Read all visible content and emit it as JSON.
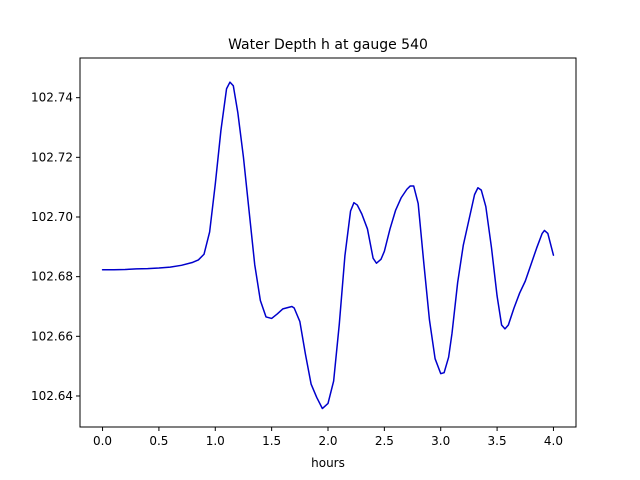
{
  "chart_data": {
    "type": "line",
    "title": "Water Depth h at gauge 540",
    "xlabel": "hours",
    "ylabel": "",
    "xlim": [
      -0.2,
      4.2
    ],
    "ylim": [
      102.6296,
      102.7533
    ],
    "grid": false,
    "x_ticks": [
      0.0,
      0.5,
      1.0,
      1.5,
      2.0,
      2.5,
      3.0,
      3.5,
      4.0
    ],
    "x_tick_labels": [
      "0.0",
      "0.5",
      "1.0",
      "1.5",
      "2.0",
      "2.5",
      "3.0",
      "3.5",
      "4.0"
    ],
    "y_ticks": [
      102.64,
      102.66,
      102.68,
      102.7,
      102.72,
      102.74
    ],
    "y_tick_labels": [
      "102.64",
      "102.66",
      "102.68",
      "102.70",
      "102.72",
      "102.74"
    ],
    "series": [
      {
        "color": "#0000cc",
        "x": [
          0.0,
          0.1,
          0.2,
          0.3,
          0.4,
          0.5,
          0.6,
          0.7,
          0.8,
          0.85,
          0.9,
          0.95,
          1.0,
          1.05,
          1.1,
          1.13,
          1.16,
          1.2,
          1.25,
          1.3,
          1.35,
          1.4,
          1.45,
          1.5,
          1.55,
          1.6,
          1.65,
          1.68,
          1.7,
          1.75,
          1.8,
          1.85,
          1.9,
          1.95,
          2.0,
          2.05,
          2.1,
          2.15,
          2.2,
          2.23,
          2.26,
          2.3,
          2.35,
          2.4,
          2.43,
          2.47,
          2.5,
          2.55,
          2.6,
          2.65,
          2.7,
          2.73,
          2.76,
          2.8,
          2.85,
          2.9,
          2.95,
          3.0,
          3.03,
          3.07,
          3.1,
          3.15,
          3.2,
          3.25,
          3.3,
          3.33,
          3.36,
          3.4,
          3.45,
          3.5,
          3.54,
          3.57,
          3.6,
          3.65,
          3.7,
          3.75,
          3.8,
          3.85,
          3.9,
          3.92,
          3.95,
          4.0
        ],
        "y": [
          102.6823,
          102.6823,
          102.6824,
          102.6826,
          102.6827,
          102.6829,
          102.6832,
          102.6838,
          102.6848,
          102.6856,
          102.6875,
          102.695,
          102.711,
          102.729,
          102.743,
          102.7452,
          102.744,
          102.735,
          102.72,
          102.702,
          102.684,
          102.672,
          102.6665,
          102.666,
          102.6675,
          102.6692,
          102.6697,
          102.67,
          102.6695,
          102.665,
          102.654,
          102.644,
          102.6395,
          102.6358,
          102.6375,
          102.645,
          102.664,
          102.687,
          102.702,
          102.7048,
          102.704,
          102.701,
          102.696,
          102.6862,
          102.6845,
          102.6858,
          102.6885,
          102.696,
          102.7023,
          102.7065,
          102.7093,
          102.7104,
          102.7104,
          102.7045,
          102.6845,
          102.6655,
          102.6525,
          102.6475,
          102.6478,
          102.653,
          102.661,
          102.678,
          102.6905,
          102.699,
          102.7075,
          102.7098,
          102.709,
          102.7035,
          102.6898,
          102.6735,
          102.6638,
          102.6625,
          102.6638,
          102.6695,
          102.6745,
          102.6785,
          102.684,
          102.6895,
          102.6945,
          102.6955,
          102.6945,
          102.6872
        ]
      }
    ]
  }
}
